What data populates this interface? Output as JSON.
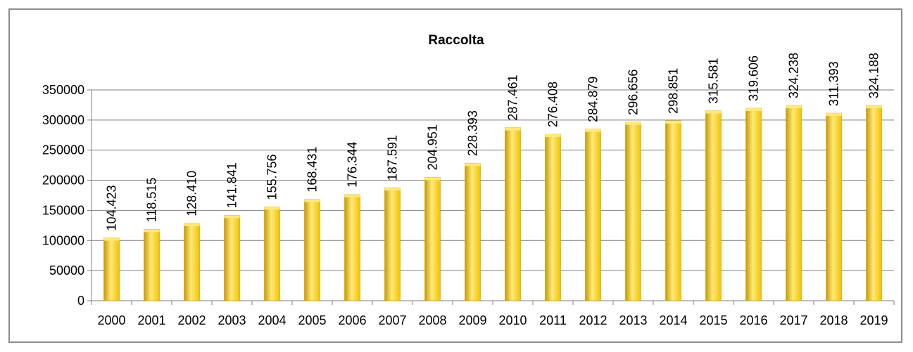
{
  "chart_data": {
    "type": "bar",
    "title": "Raccolta",
    "xlabel": "",
    "ylabel": "",
    "categories": [
      "2000",
      "2001",
      "2002",
      "2003",
      "2004",
      "2005",
      "2006",
      "2007",
      "2008",
      "2009",
      "2010",
      "2011",
      "2012",
      "2013",
      "2014",
      "2015",
      "2016",
      "2017",
      "2018",
      "2019"
    ],
    "values": [
      104423,
      118515,
      128410,
      141841,
      155756,
      168431,
      176344,
      187591,
      204951,
      228393,
      287461,
      276408,
      284879,
      296656,
      298851,
      315581,
      319606,
      324238,
      311393,
      324188
    ],
    "data_labels": [
      "104.423",
      "118.515",
      "128.410",
      "141.841",
      "155.756",
      "168.431",
      "176.344",
      "187.591",
      "204.951",
      "228.393",
      "287.461",
      "276.408",
      "284.879",
      "296.656",
      "298.851",
      "315.581",
      "319.606",
      "324.238",
      "311.393",
      "324.188"
    ],
    "y_ticks": [
      "0",
      "50000",
      "100000",
      "150000",
      "200000",
      "250000",
      "300000",
      "350000"
    ],
    "ylim": [
      0,
      350000
    ],
    "grid": true,
    "legend": "none",
    "bar_color": "#f2c200",
    "bar_highlight": "#ffe97a",
    "bar_shadow": "#c99a00",
    "grid_color": "#7f7f7f"
  }
}
